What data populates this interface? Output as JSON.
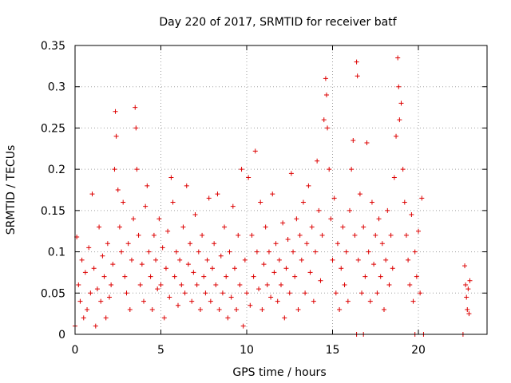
{
  "chart_data": {
    "type": "scatter",
    "title": "Day 220 of 2017, SRMTID for receiver batf",
    "xlabel": "GPS time / hours",
    "ylabel": "SRMTID / TECUs",
    "xlim": [
      0,
      24
    ],
    "ylim": [
      0,
      0.35
    ],
    "grid": true,
    "marker": "+",
    "series_color": "#dd0000",
    "x_ticks": [
      0,
      5,
      10,
      15,
      20
    ],
    "x_tick_labels": [
      "0",
      "5",
      "10",
      "15",
      "20"
    ],
    "y_ticks": [
      0,
      0.05,
      0.1,
      0.15,
      0.2,
      0.25,
      0.3,
      0.35
    ],
    "y_tick_labels": [
      "0",
      "0.05",
      "0.1",
      "0.15",
      "0.2",
      "0.25",
      "0.3",
      "0.35"
    ],
    "series": [
      {
        "name": "SRMTID",
        "points": [
          [
            0.1,
            0.118
          ],
          [
            0.2,
            0.06
          ],
          [
            0.3,
            0.04
          ],
          [
            0.4,
            0.09
          ],
          [
            0.5,
            0.02
          ],
          [
            0.6,
            0.075
          ],
          [
            0.7,
            0.03
          ],
          [
            0.8,
            0.105
          ],
          [
            0.9,
            0.05
          ],
          [
            1.0,
            0.17
          ],
          [
            1.1,
            0.08
          ],
          [
            1.2,
            0.01
          ],
          [
            1.3,
            0.055
          ],
          [
            1.4,
            0.13
          ],
          [
            1.5,
            0.04
          ],
          [
            1.6,
            0.095
          ],
          [
            1.7,
            0.07
          ],
          [
            1.8,
            0.02
          ],
          [
            1.9,
            0.11
          ],
          [
            2.0,
            0.045
          ],
          [
            2.1,
            0.06
          ],
          [
            2.2,
            0.085
          ],
          [
            2.3,
            0.2
          ],
          [
            2.35,
            0.27
          ],
          [
            2.4,
            0.24
          ],
          [
            2.5,
            0.175
          ],
          [
            2.6,
            0.13
          ],
          [
            2.7,
            0.1
          ],
          [
            2.8,
            0.16
          ],
          [
            2.9,
            0.07
          ],
          [
            3.0,
            0.05
          ],
          [
            3.1,
            0.11
          ],
          [
            3.2,
            0.03
          ],
          [
            3.3,
            0.09
          ],
          [
            3.4,
            0.14
          ],
          [
            3.5,
            0.275
          ],
          [
            3.55,
            0.25
          ],
          [
            3.6,
            0.2
          ],
          [
            3.7,
            0.12
          ],
          [
            3.8,
            0.06
          ],
          [
            3.9,
            0.085
          ],
          [
            4.0,
            0.04
          ],
          [
            4.1,
            0.155
          ],
          [
            4.2,
            0.18
          ],
          [
            4.3,
            0.1
          ],
          [
            4.4,
            0.07
          ],
          [
            4.5,
            0.03
          ],
          [
            4.6,
            0.12
          ],
          [
            4.7,
            0.09
          ],
          [
            4.8,
            0.055
          ],
          [
            4.9,
            0.14
          ],
          [
            5.0,
            0.06
          ],
          [
            5.1,
            0.105
          ],
          [
            5.2,
            0.02
          ],
          [
            5.3,
            0.08
          ],
          [
            5.4,
            0.125
          ],
          [
            5.5,
            0.045
          ],
          [
            5.6,
            0.19
          ],
          [
            5.7,
            0.16
          ],
          [
            5.8,
            0.07
          ],
          [
            5.9,
            0.1
          ],
          [
            6.0,
            0.035
          ],
          [
            6.1,
            0.09
          ],
          [
            6.2,
            0.06
          ],
          [
            6.3,
            0.13
          ],
          [
            6.4,
            0.05
          ],
          [
            6.5,
            0.18
          ],
          [
            6.6,
            0.085
          ],
          [
            6.7,
            0.11
          ],
          [
            6.8,
            0.04
          ],
          [
            6.9,
            0.075
          ],
          [
            7.0,
            0.145
          ],
          [
            7.1,
            0.06
          ],
          [
            7.2,
            0.1
          ],
          [
            7.3,
            0.03
          ],
          [
            7.4,
            0.12
          ],
          [
            7.5,
            0.07
          ],
          [
            7.6,
            0.05
          ],
          [
            7.7,
            0.09
          ],
          [
            7.8,
            0.165
          ],
          [
            7.9,
            0.04
          ],
          [
            8.0,
            0.08
          ],
          [
            8.1,
            0.11
          ],
          [
            8.2,
            0.06
          ],
          [
            8.3,
            0.17
          ],
          [
            8.4,
            0.03
          ],
          [
            8.5,
            0.095
          ],
          [
            8.6,
            0.05
          ],
          [
            8.7,
            0.13
          ],
          [
            8.8,
            0.07
          ],
          [
            8.9,
            0.02
          ],
          [
            9.0,
            0.1
          ],
          [
            9.1,
            0.045
          ],
          [
            9.2,
            0.155
          ],
          [
            9.3,
            0.08
          ],
          [
            9.4,
            0.03
          ],
          [
            9.5,
            0.12
          ],
          [
            9.6,
            0.06
          ],
          [
            9.7,
            0.2
          ],
          [
            9.8,
            0.01
          ],
          [
            9.9,
            0.09
          ],
          [
            10.0,
            0.05
          ],
          [
            10.1,
            0.19
          ],
          [
            10.2,
            0.035
          ],
          [
            10.3,
            0.12
          ],
          [
            10.4,
            0.07
          ],
          [
            10.5,
            0.222
          ],
          [
            10.6,
            0.1
          ],
          [
            10.7,
            0.055
          ],
          [
            10.8,
            0.16
          ],
          [
            10.9,
            0.03
          ],
          [
            11.0,
            0.085
          ],
          [
            11.1,
            0.13
          ],
          [
            11.2,
            0.06
          ],
          [
            11.3,
            0.1
          ],
          [
            11.4,
            0.045
          ],
          [
            11.5,
            0.17
          ],
          [
            11.6,
            0.075
          ],
          [
            11.7,
            0.11
          ],
          [
            11.8,
            0.04
          ],
          [
            11.9,
            0.09
          ],
          [
            12.0,
            0.06
          ],
          [
            12.1,
            0.135
          ],
          [
            12.2,
            0.02
          ],
          [
            12.3,
            0.08
          ],
          [
            12.4,
            0.115
          ],
          [
            12.5,
            0.05
          ],
          [
            12.6,
            0.195
          ],
          [
            12.7,
            0.1
          ],
          [
            12.8,
            0.07
          ],
          [
            12.9,
            0.14
          ],
          [
            13.0,
            0.03
          ],
          [
            13.1,
            0.12
          ],
          [
            13.2,
            0.09
          ],
          [
            13.3,
            0.16
          ],
          [
            13.4,
            0.05
          ],
          [
            13.5,
            0.11
          ],
          [
            13.6,
            0.18
          ],
          [
            13.7,
            0.075
          ],
          [
            13.8,
            0.13
          ],
          [
            13.9,
            0.04
          ],
          [
            14.0,
            0.1
          ],
          [
            14.1,
            0.21
          ],
          [
            14.2,
            0.15
          ],
          [
            14.3,
            0.065
          ],
          [
            14.4,
            0.12
          ],
          [
            14.5,
            0.26
          ],
          [
            14.6,
            0.31
          ],
          [
            14.65,
            0.29
          ],
          [
            14.7,
            0.25
          ],
          [
            14.8,
            0.2
          ],
          [
            14.9,
            0.14
          ],
          [
            15.0,
            0.09
          ],
          [
            15.1,
            0.165
          ],
          [
            15.2,
            0.05
          ],
          [
            15.3,
            0.11
          ],
          [
            15.4,
            0.03
          ],
          [
            15.5,
            0.08
          ],
          [
            15.6,
            0.13
          ],
          [
            15.7,
            0.06
          ],
          [
            15.8,
            0.1
          ],
          [
            15.9,
            0.04
          ],
          [
            16.0,
            0.15
          ],
          [
            16.1,
            0.2
          ],
          [
            16.2,
            0.235
          ],
          [
            16.3,
            0.12
          ],
          [
            16.4,
            0.33
          ],
          [
            16.45,
            0.313
          ],
          [
            16.5,
            0.09
          ],
          [
            16.6,
            0.17
          ],
          [
            16.7,
            0.05
          ],
          [
            16.8,
            0.13
          ],
          [
            16.9,
            0.07
          ],
          [
            17.0,
            0.232
          ],
          [
            17.1,
            0.1
          ],
          [
            17.2,
            0.04
          ],
          [
            17.3,
            0.16
          ],
          [
            17.4,
            0.085
          ],
          [
            17.5,
            0.12
          ],
          [
            17.6,
            0.05
          ],
          [
            17.7,
            0.14
          ],
          [
            17.8,
            0.07
          ],
          [
            17.9,
            0.11
          ],
          [
            18.0,
            0.03
          ],
          [
            18.1,
            0.09
          ],
          [
            18.2,
            0.15
          ],
          [
            18.3,
            0.06
          ],
          [
            18.4,
            0.12
          ],
          [
            18.5,
            0.08
          ],
          [
            18.6,
            0.19
          ],
          [
            18.7,
            0.24
          ],
          [
            18.8,
            0.335
          ],
          [
            18.85,
            0.3
          ],
          [
            18.9,
            0.26
          ],
          [
            19.0,
            0.28
          ],
          [
            19.1,
            0.2
          ],
          [
            19.2,
            0.16
          ],
          [
            19.3,
            0.12
          ],
          [
            19.4,
            0.09
          ],
          [
            19.5,
            0.06
          ],
          [
            19.6,
            0.145
          ],
          [
            19.7,
            0.04
          ],
          [
            19.8,
            0.1
          ],
          [
            19.9,
            0.07
          ],
          [
            20.0,
            0.125
          ],
          [
            20.1,
            0.05
          ],
          [
            20.2,
            0.165
          ],
          [
            22.7,
            0.083
          ],
          [
            22.75,
            0.06
          ],
          [
            22.8,
            0.045
          ],
          [
            22.85,
            0.03
          ],
          [
            22.9,
            0.055
          ],
          [
            22.95,
            0.025
          ],
          [
            23.0,
            0.065
          ],
          [
            16.4,
            0.0
          ],
          [
            16.8,
            0.0
          ],
          [
            19.8,
            0.0
          ],
          [
            20.3,
            0.0
          ],
          [
            22.6,
            0.0
          ],
          [
            0.0,
            0.01
          ]
        ]
      }
    ]
  }
}
